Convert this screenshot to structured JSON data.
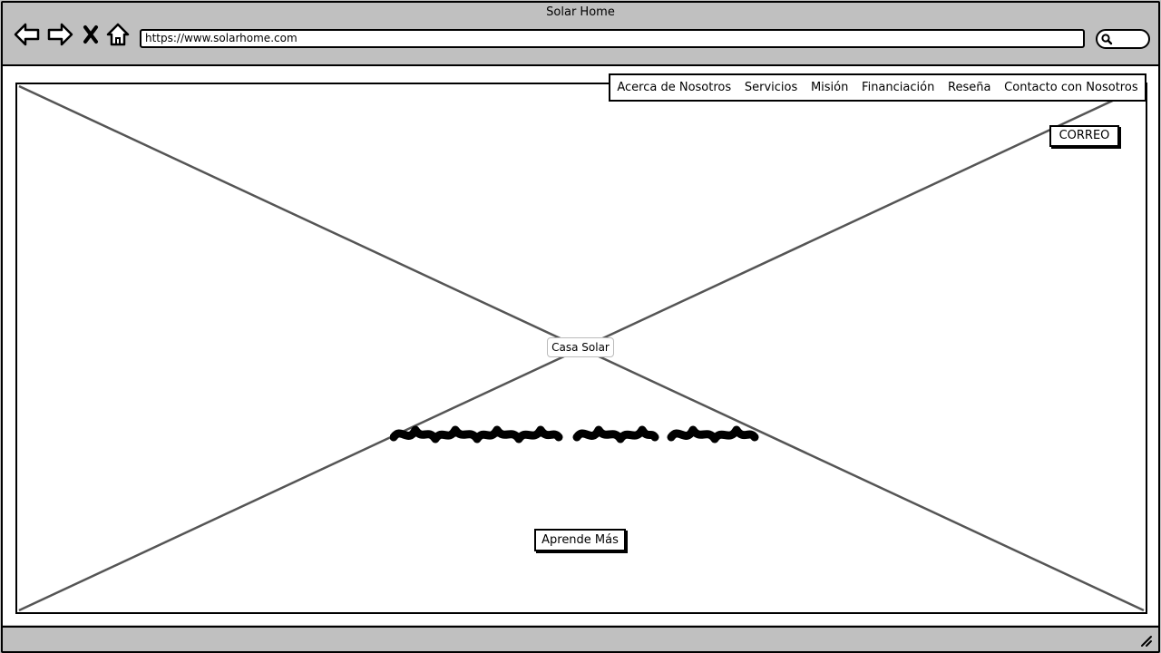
{
  "window": {
    "title": "Solar Home"
  },
  "toolbar": {
    "back_icon": "back-arrow-icon",
    "forward_icon": "forward-arrow-icon",
    "close_icon": "close-icon",
    "home_icon": "home-icon",
    "address": "https://www.solarhome.com",
    "search_icon": "search-icon"
  },
  "nav": {
    "items": [
      "Acerca de Nosotros",
      "Servicios",
      "Misión",
      "Financiación",
      "Reseña",
      "Contacto con Nosotros"
    ]
  },
  "hero": {
    "placeholder": "image-placeholder",
    "label": "Casa Solar",
    "correo_button": "CORREO",
    "cta_button": "Aprende Más"
  },
  "colors": {
    "chrome": "#c0c0c0",
    "stroke": "#000000",
    "placeholder_line": "#555555"
  }
}
